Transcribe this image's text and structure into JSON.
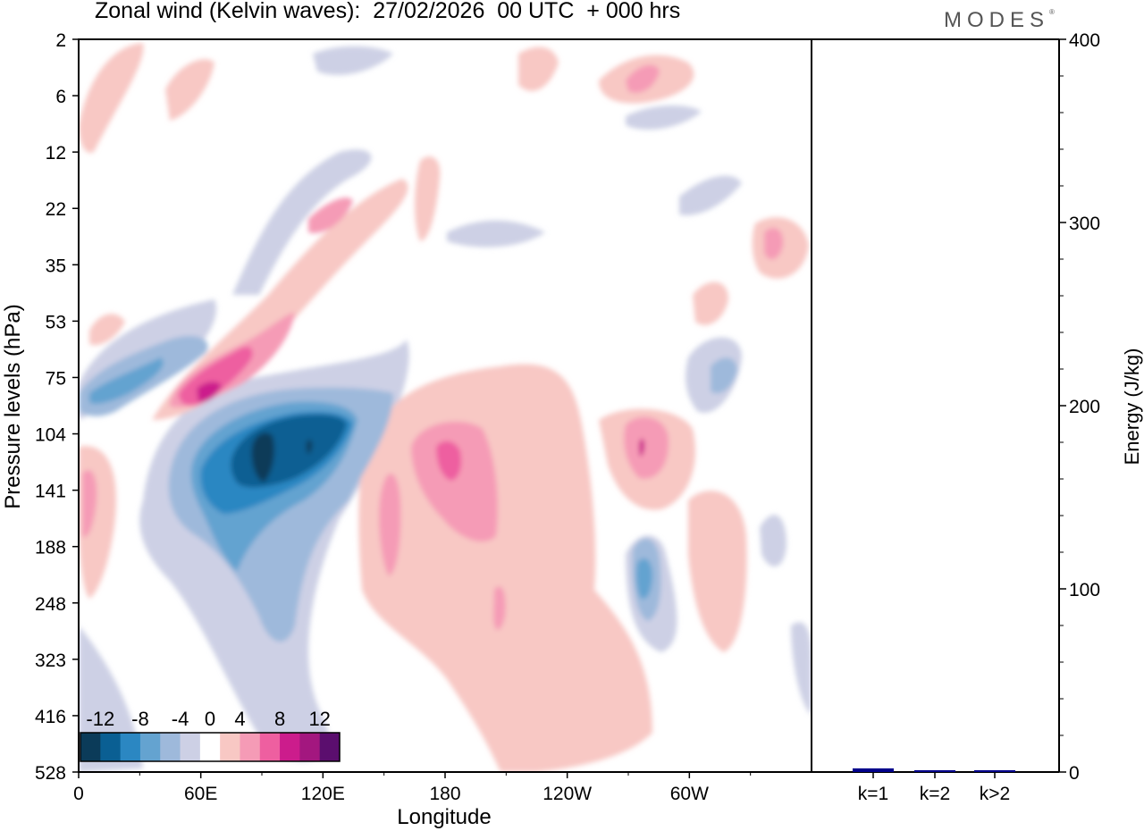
{
  "title": "Zonal wind (Kelvin waves):  27/02/2026  00 UTC  + 000 hrs",
  "brand": "MODES",
  "brand_mark": "®",
  "chart_data": [
    {
      "type": "heatmap",
      "title": "Zonal wind (Kelvin waves):  27/02/2026  00 UTC  + 000 hrs",
      "xlabel": "Longitude",
      "ylabel": "Pressure levels (hPa)",
      "x_ticks": [
        "0",
        "60E",
        "120E",
        "180",
        "120W",
        "60W"
      ],
      "x_tick_deg": [
        0,
        60,
        120,
        180,
        240,
        300
      ],
      "x_range_deg": [
        0,
        360
      ],
      "y_ticks": [
        "2",
        "6",
        "12",
        "22",
        "35",
        "53",
        "75",
        "104",
        "141",
        "188",
        "248",
        "323",
        "416",
        "528"
      ],
      "colorbar": {
        "labels": [
          "-12",
          "-8",
          "-4",
          "0",
          "4",
          "8",
          "12"
        ],
        "levels": [
          -14,
          -12,
          -10,
          -8,
          -6,
          -4,
          -2,
          2,
          4,
          6,
          8,
          10,
          12,
          14
        ],
        "colors": [
          "#0b3b59",
          "#0a5f93",
          "#2b87c2",
          "#64a3d0",
          "#9eb9db",
          "#cdd0e5",
          "#ffffff",
          "#f8c8c4",
          "#f59bb6",
          "#ee5fa0",
          "#cc1c8c",
          "#a3177f",
          "#5b0e6e"
        ]
      },
      "features": [
        {
          "lon": 90,
          "level": 120,
          "value": -14
        },
        {
          "lon": 113,
          "level": 112,
          "value": -13
        },
        {
          "lon": 60,
          "level": 80,
          "value": 11
        },
        {
          "lon": 183,
          "level": 118,
          "value": 7
        },
        {
          "lon": 276,
          "level": 120,
          "value": 8
        },
        {
          "lon": 276,
          "level": 235,
          "value": -8
        },
        {
          "lon": 15,
          "level": 90,
          "value": -8
        },
        {
          "lon": 340,
          "level": 28,
          "value": 6
        },
        {
          "lon": 270,
          "level": 6,
          "value": 6
        }
      ]
    },
    {
      "type": "bar",
      "categories": [
        "k=1",
        "k=2",
        "k>2"
      ],
      "values": [
        2,
        1,
        1
      ],
      "ylabel": "Energy (J/kg)",
      "ylim": [
        0,
        400
      ],
      "y_ticks": [
        "0",
        "100",
        "200",
        "300",
        "400"
      ],
      "bar_color": "#00008b"
    }
  ]
}
